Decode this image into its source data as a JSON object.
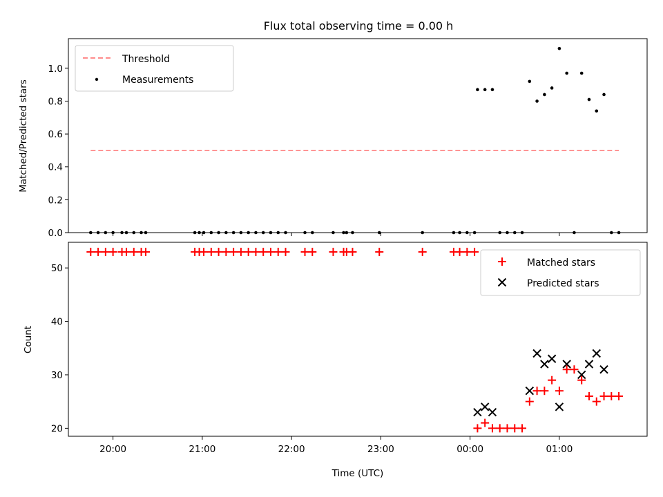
{
  "title": "Flux total observing time = 0.00 h",
  "chart_data": [
    {
      "type": "scatter",
      "ylabel": "Matched/Predicted stars",
      "xlim": [
        "19:30",
        "01:59"
      ],
      "ylim": [
        0,
        1.18
      ],
      "yticks": [
        0.0,
        0.2,
        0.4,
        0.6,
        0.8,
        1.0
      ],
      "ytick_labels": [
        "0.0",
        "0.2",
        "0.4",
        "0.6",
        "0.8",
        "1.0"
      ],
      "legend": "top-left",
      "threshold": {
        "name": "Threshold",
        "value": 0.5,
        "x_range": [
          "19:45",
          "01:40"
        ],
        "color": "#ff7b7b",
        "style": "dashed"
      },
      "series": [
        {
          "name": "Measurements",
          "color": "#000000",
          "points": [
            [
              "19:45",
              0
            ],
            [
              "19:50",
              0
            ],
            [
              "19:55",
              0
            ],
            [
              "20:00",
              0
            ],
            [
              "20:06",
              0
            ],
            [
              "20:09",
              0
            ],
            [
              "20:14",
              0
            ],
            [
              "20:19",
              0
            ],
            [
              "20:22",
              0
            ],
            [
              "20:55",
              0
            ],
            [
              "20:58",
              0
            ],
            [
              "21:01",
              0
            ],
            [
              "21:06",
              0
            ],
            [
              "21:11",
              0
            ],
            [
              "21:16",
              0
            ],
            [
              "21:21",
              0
            ],
            [
              "21:26",
              0
            ],
            [
              "21:31",
              0
            ],
            [
              "21:36",
              0
            ],
            [
              "21:41",
              0
            ],
            [
              "21:46",
              0
            ],
            [
              "21:51",
              0
            ],
            [
              "21:56",
              0
            ],
            [
              "22:09",
              0
            ],
            [
              "22:14",
              0
            ],
            [
              "22:28",
              0
            ],
            [
              "22:35",
              0
            ],
            [
              "22:37",
              0
            ],
            [
              "22:41",
              0
            ],
            [
              "22:59",
              0
            ],
            [
              "23:28",
              0
            ],
            [
              "23:49",
              0
            ],
            [
              "23:53",
              0
            ],
            [
              "23:58",
              0
            ],
            [
              "00:03",
              0
            ],
            [
              "00:05",
              0.87
            ],
            [
              "00:10",
              0.87
            ],
            [
              "00:15",
              0.87
            ],
            [
              "00:20",
              0
            ],
            [
              "00:25",
              0
            ],
            [
              "00:30",
              0
            ],
            [
              "00:35",
              0
            ],
            [
              "00:40",
              0.92
            ],
            [
              "00:45",
              0.8
            ],
            [
              "00:50",
              0.84
            ],
            [
              "00:55",
              0.88
            ],
            [
              "01:00",
              1.12
            ],
            [
              "01:05",
              0.97
            ],
            [
              "01:10",
              0
            ],
            [
              "01:15",
              0.97
            ],
            [
              "01:20",
              0.81
            ],
            [
              "01:25",
              0.74
            ],
            [
              "01:30",
              0.84
            ],
            [
              "01:35",
              0
            ],
            [
              "01:40",
              0
            ]
          ]
        }
      ]
    },
    {
      "type": "scatter",
      "xlabel": "Time (UTC)",
      "ylabel": "Count",
      "xlim": [
        "19:30",
        "01:59"
      ],
      "ylim": [
        18.5,
        54.8
      ],
      "xticks": [
        "20:00",
        "21:00",
        "22:00",
        "23:00",
        "00:00",
        "01:00"
      ],
      "xtick_labels": [
        "20:00",
        "21:00",
        "22:00",
        "23:00",
        "00:00",
        "01:00"
      ],
      "yticks": [
        20,
        30,
        40,
        50
      ],
      "ytick_labels": [
        "20",
        "30",
        "40",
        "50"
      ],
      "legend": "top-right",
      "series": [
        {
          "name": "Matched stars",
          "marker": "+",
          "color": "#ff0000",
          "points": [
            [
              "19:45",
              53
            ],
            [
              "19:50",
              53
            ],
            [
              "19:55",
              53
            ],
            [
              "20:00",
              53
            ],
            [
              "20:06",
              53
            ],
            [
              "20:09",
              53
            ],
            [
              "20:14",
              53
            ],
            [
              "20:19",
              53
            ],
            [
              "20:22",
              53
            ],
            [
              "20:55",
              53
            ],
            [
              "20:58",
              53
            ],
            [
              "21:01",
              53
            ],
            [
              "21:06",
              53
            ],
            [
              "21:11",
              53
            ],
            [
              "21:16",
              53
            ],
            [
              "21:21",
              53
            ],
            [
              "21:26",
              53
            ],
            [
              "21:31",
              53
            ],
            [
              "21:36",
              53
            ],
            [
              "21:41",
              53
            ],
            [
              "21:46",
              53
            ],
            [
              "21:51",
              53
            ],
            [
              "21:56",
              53
            ],
            [
              "22:09",
              53
            ],
            [
              "22:14",
              53
            ],
            [
              "22:28",
              53
            ],
            [
              "22:35",
              53
            ],
            [
              "22:37",
              53
            ],
            [
              "22:41",
              53
            ],
            [
              "22:59",
              53
            ],
            [
              "23:28",
              53
            ],
            [
              "23:49",
              53
            ],
            [
              "23:53",
              53
            ],
            [
              "23:58",
              53
            ],
            [
              "00:03",
              53
            ],
            [
              "00:05",
              20
            ],
            [
              "00:10",
              21
            ],
            [
              "00:15",
              20
            ],
            [
              "00:20",
              20
            ],
            [
              "00:25",
              20
            ],
            [
              "00:30",
              20
            ],
            [
              "00:35",
              20
            ],
            [
              "00:40",
              25
            ],
            [
              "00:45",
              27
            ],
            [
              "00:50",
              27
            ],
            [
              "00:55",
              29
            ],
            [
              "01:00",
              27
            ],
            [
              "01:05",
              31
            ],
            [
              "01:10",
              31
            ],
            [
              "01:15",
              29
            ],
            [
              "01:20",
              26
            ],
            [
              "01:25",
              25
            ],
            [
              "01:30",
              26
            ],
            [
              "01:35",
              26
            ],
            [
              "01:40",
              26
            ]
          ]
        },
        {
          "name": "Predicted stars",
          "marker": "x",
          "color": "#000000",
          "points": [
            [
              "00:05",
              23
            ],
            [
              "00:10",
              24
            ],
            [
              "00:15",
              23
            ],
            [
              "00:40",
              27
            ],
            [
              "00:45",
              34
            ],
            [
              "00:50",
              32
            ],
            [
              "00:55",
              33
            ],
            [
              "01:00",
              24
            ],
            [
              "01:05",
              32
            ],
            [
              "01:15",
              30
            ],
            [
              "01:20",
              32
            ],
            [
              "01:25",
              34
            ],
            [
              "01:30",
              31
            ]
          ]
        }
      ]
    }
  ]
}
